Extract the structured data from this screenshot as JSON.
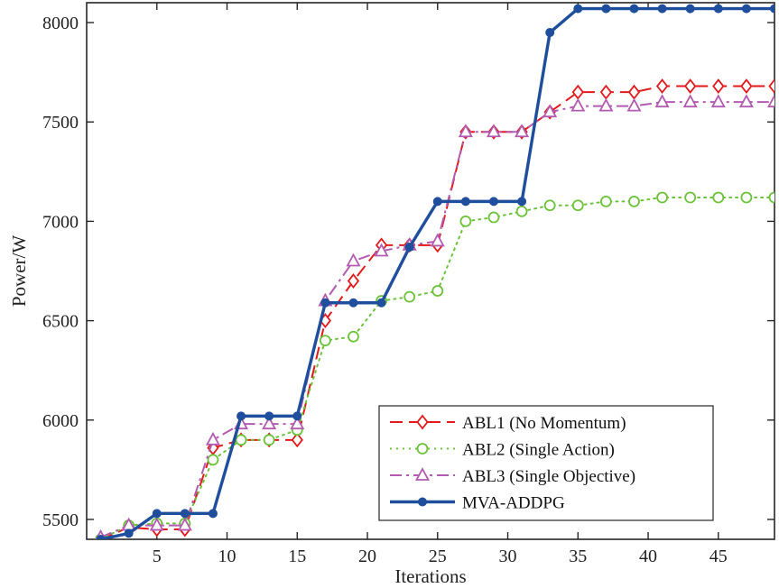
{
  "chart_data": {
    "type": "line",
    "xlabel": "Iterations",
    "ylabel": "Power/W",
    "xlim": [
      0,
      49
    ],
    "ylim": [
      5400,
      8100
    ],
    "xticks": [
      5,
      10,
      15,
      20,
      25,
      30,
      35,
      40,
      45
    ],
    "yticks": [
      5500,
      6000,
      6500,
      7000,
      7500,
      8000
    ],
    "grid": false,
    "legend_position": "lower-right",
    "series": [
      {
        "name": "ABL1 (No Momentum)",
        "color": "#e3191c",
        "line_style": "dashed",
        "marker": "diamond",
        "x": [
          1,
          3,
          5,
          7,
          9,
          11,
          13,
          15,
          17,
          19,
          21,
          23,
          25,
          27,
          29,
          31,
          33,
          35,
          37,
          39,
          41,
          43,
          45,
          47,
          49
        ],
        "y": [
          5400,
          5460,
          5450,
          5450,
          5860,
          5900,
          5900,
          5900,
          6500,
          6700,
          6880,
          6880,
          6880,
          7450,
          7450,
          7450,
          7550,
          7650,
          7650,
          7650,
          7680,
          7680,
          7680,
          7680,
          7680
        ]
      },
      {
        "name": "ABL2 (Single Action)",
        "color": "#6cc23a",
        "line_style": "dotted",
        "marker": "circle",
        "x": [
          1,
          3,
          5,
          7,
          9,
          11,
          13,
          15,
          17,
          19,
          21,
          23,
          25,
          27,
          29,
          31,
          33,
          35,
          37,
          39,
          41,
          43,
          45,
          47,
          49
        ],
        "y": [
          5400,
          5470,
          5480,
          5480,
          5800,
          5900,
          5900,
          5950,
          6400,
          6420,
          6600,
          6620,
          6650,
          7000,
          7020,
          7050,
          7080,
          7080,
          7100,
          7100,
          7120,
          7120,
          7120,
          7120,
          7120
        ]
      },
      {
        "name": "ABL3 (Single Objective)",
        "color": "#b25bb0",
        "line_style": "dashdot",
        "marker": "triangle",
        "x": [
          1,
          3,
          5,
          7,
          9,
          11,
          13,
          15,
          17,
          19,
          21,
          23,
          25,
          27,
          29,
          31,
          33,
          35,
          37,
          39,
          41,
          43,
          45,
          47,
          49
        ],
        "y": [
          5410,
          5470,
          5470,
          5470,
          5900,
          5980,
          5980,
          5980,
          6600,
          6800,
          6850,
          6880,
          6900,
          7450,
          7450,
          7450,
          7550,
          7580,
          7580,
          7580,
          7600,
          7600,
          7600,
          7600,
          7600
        ]
      },
      {
        "name": "MVA-ADDPG",
        "color": "#1f4e9d",
        "line_style": "solid",
        "marker": "filled-circle",
        "x": [
          1,
          3,
          5,
          7,
          9,
          11,
          13,
          15,
          17,
          19,
          21,
          23,
          25,
          27,
          29,
          31,
          33,
          35,
          37,
          39,
          41,
          43,
          45,
          47,
          49
        ],
        "y": [
          5400,
          5430,
          5530,
          5530,
          5530,
          6020,
          6020,
          6020,
          6590,
          6590,
          6590,
          6870,
          7100,
          7100,
          7100,
          7100,
          7950,
          8070,
          8070,
          8070,
          8070,
          8070,
          8070,
          8070,
          8070
        ]
      }
    ]
  }
}
